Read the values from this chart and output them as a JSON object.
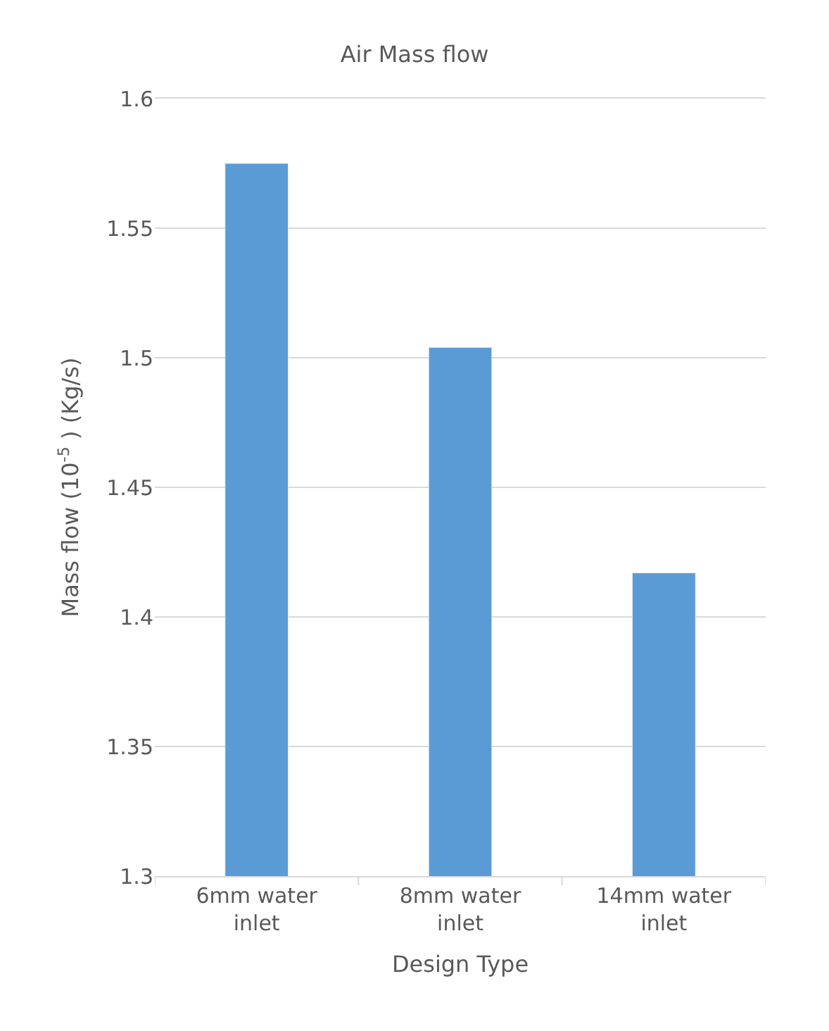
{
  "chart_data": {
    "type": "bar",
    "title": "Air Mass flow",
    "xlabel": "Design Type",
    "ylabel": "Mass flow (10$^{-5}$ ) (Kg/s)",
    "categories": [
      "6mm water inlet",
      "8mm water inlet",
      "14mm water inlet"
    ],
    "values": [
      1.575,
      1.504,
      1.417
    ],
    "color": "#5b9bd5",
    "ylim": [
      1.3,
      1.6
    ],
    "yticks": [
      1.3,
      1.35,
      1.4,
      1.45,
      1.5,
      1.55,
      1.6
    ],
    "grid": "y"
  }
}
